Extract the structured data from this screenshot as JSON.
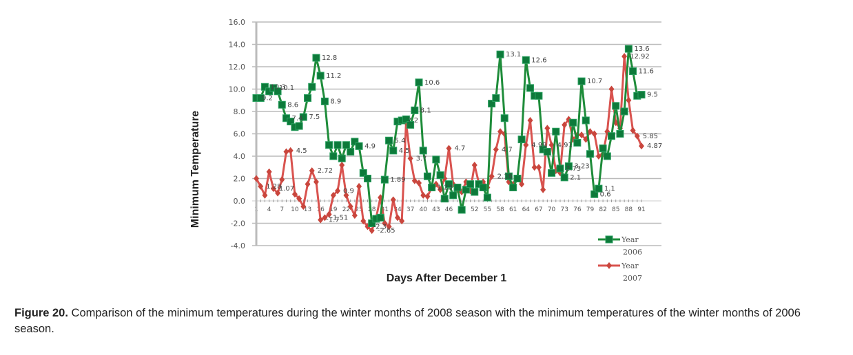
{
  "caption": {
    "label": "Figure 20.",
    "text": " Comparison of the minimum temperatures during the winter months of 2008 season with the minimum temperatures of the winter months of 2006 season."
  },
  "chart_data": {
    "type": "line",
    "title": "",
    "xlabel": "Days After December 1",
    "ylabel": "Minimum Temperature",
    "ylim": [
      -4.0,
      16.0
    ],
    "yticks": [
      "16.0",
      "14.0",
      "12.0",
      "10.0",
      "8.0",
      "6.0",
      "4.0",
      "2.0",
      "0.0",
      "-2.0",
      "-4.0"
    ],
    "xlim": [
      1,
      91
    ],
    "xticks": [
      "1",
      "4",
      "7",
      "10",
      "13",
      "16",
      "19",
      "22",
      "25",
      "28",
      "31",
      "34",
      "37",
      "40",
      "43",
      "46",
      "49",
      "52",
      "55",
      "58",
      "61",
      "64",
      "67",
      "70",
      "73",
      "76",
      "79",
      "82",
      "85",
      "88",
      "91"
    ],
    "grid": "horizontal",
    "legend": "bottom-right",
    "series": [
      {
        "name": "Year 2006",
        "color": "#1e8c3a",
        "marker": "square",
        "values": [
          9.2,
          9.2,
          10.2,
          9.8,
          10.1,
          9.8,
          8.6,
          7.4,
          7.1,
          6.6,
          6.7,
          7.5,
          9.2,
          10.2,
          12.8,
          11.2,
          8.9,
          5.0,
          4.0,
          5.0,
          3.8,
          5.0,
          4.4,
          5.3,
          4.9,
          2.5,
          2.0,
          -2.0,
          -1.6,
          -1.5,
          1.9,
          5.4,
          4.5,
          7.1,
          7.2,
          7.3,
          6.8,
          8.1,
          10.6,
          4.5,
          2.2,
          1.2,
          3.7,
          2.3,
          0.2,
          1.5,
          0.5,
          1.2,
          -0.8,
          1.0,
          1.5,
          0.8,
          1.5,
          1.2,
          0.3,
          8.7,
          9.2,
          13.1,
          7.4,
          2.2,
          1.2,
          2.0,
          5.5,
          12.6,
          10.1,
          9.4,
          9.4,
          4.6,
          4.4,
          2.5,
          6.2,
          2.9,
          2.1,
          3.1,
          7.0,
          5.2,
          10.7,
          7.2,
          4.2,
          0.6,
          1.1,
          4.7,
          4.0,
          5.8,
          8.5,
          6.0,
          8.0,
          13.6,
          11.6,
          9.4,
          9.5
        ]
      },
      {
        "name": "Year 2007",
        "color": "#d9534f",
        "marker": "diamond",
        "values": [
          2.0,
          1.3,
          0.5,
          2.6,
          1.1,
          0.7,
          1.9,
          4.4,
          4.5,
          0.6,
          0.2,
          -0.5,
          1.5,
          2.7,
          1.7,
          -1.7,
          -1.5,
          -1.2,
          0.5,
          0.9,
          3.2,
          0.5,
          -0.5,
          -1.3,
          1.3,
          -1.8,
          -2.3,
          -2.65,
          -1.5,
          0.3,
          -2.0,
          -2.3,
          0.1,
          -1.5,
          -1.8,
          7.0,
          3.8,
          1.8,
          1.6,
          0.5,
          0.4,
          1.2,
          1.5,
          1.0,
          2.0,
          4.7,
          1.5,
          1.0,
          0.8,
          1.7,
          0.9,
          3.2,
          1.6,
          1.7,
          1.2,
          2.2,
          4.6,
          6.2,
          6.0,
          1.7,
          1.5,
          2.1,
          1.5,
          5.0,
          7.2,
          3.0,
          3.0,
          1.0,
          6.5,
          5.0,
          2.7,
          2.5,
          6.8,
          7.3,
          5.5,
          5.9,
          5.9,
          5.5,
          6.2,
          6.0,
          4.0,
          4.2,
          6.2,
          10.0,
          7.0,
          6.5,
          12.92,
          9.0,
          6.3,
          5.8,
          4.91
        ]
      }
    ],
    "data_labels": {
      "Year 2006": [
        "12.8",
        "11.2",
        "10.3",
        "8.9",
        "8.6",
        "7.5",
        "10.6",
        "8.1",
        "5.4",
        "4.9",
        "4.5",
        "13.1",
        "12.6",
        "10.1",
        "9.2",
        "7.4",
        "10.7",
        "7.2",
        "13.6",
        "11.6",
        "9.5",
        "2.1",
        "1.1",
        "0.6",
        "3.23",
        "2.73",
        "1.89"
      ],
      "Year 2007": [
        "4.87",
        "2.72",
        "2.16",
        "1.28",
        "0.9",
        "-1.7",
        "-1.51",
        "-2.65",
        "-2.3",
        "1.23",
        "4.5",
        "4.7",
        "3.7",
        "1.07",
        "4.7",
        "4.99",
        "12.92",
        "5.85",
        "4.91"
      ]
    }
  }
}
